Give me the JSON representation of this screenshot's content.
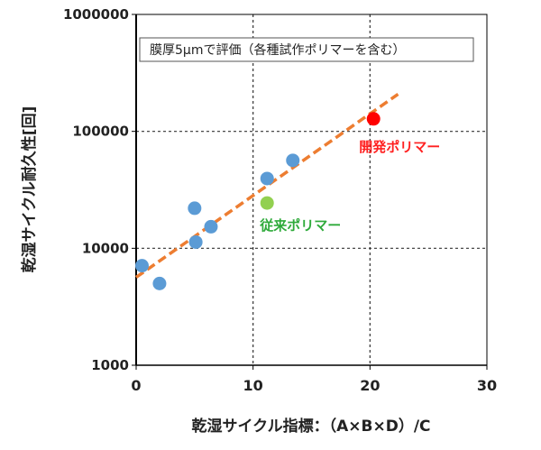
{
  "chart_data": {
    "type": "scatter",
    "xlabel": "乾湿サイクル指標：（A×B×D）/C",
    "ylabel": "乾湿サイクル耐久性[回]",
    "annotation_box": "膜厚5μmで評価（各種試作ポリマーを含む）",
    "xlim": [
      0,
      30
    ],
    "ylim": [
      1000,
      1000000
    ],
    "y_scale": "log",
    "x_ticks": [
      "0",
      "10",
      "20",
      "30"
    ],
    "y_ticks": [
      "1000",
      "10000",
      "100000",
      "1000000"
    ],
    "grid": true,
    "series": [
      {
        "color": "#5b9bd5",
        "points": [
          {
            "x": 0.5,
            "y": 7100
          },
          {
            "x": 2.0,
            "y": 5000
          },
          {
            "x": 5.0,
            "y": 22000
          },
          {
            "x": 5.1,
            "y": 11300
          },
          {
            "x": 6.4,
            "y": 15300
          },
          {
            "x": 11.2,
            "y": 39500
          },
          {
            "x": 13.4,
            "y": 56500
          }
        ]
      },
      {
        "name": "従来ポリマー",
        "color": "#92d050",
        "label_color": "#2eaa3a",
        "points": [
          {
            "x": 11.2,
            "y": 24400
          }
        ]
      },
      {
        "name": "開発ポリマー",
        "color": "#ff0000",
        "label_color": "#ff2020",
        "points": [
          {
            "x": 20.3,
            "y": 128000
          }
        ]
      }
    ],
    "trendline": {
      "color": "#ed7d31",
      "style": "dashed",
      "x_range": [
        0,
        22.4
      ],
      "y_at_start": 5650,
      "y_at_end": 208000
    }
  }
}
